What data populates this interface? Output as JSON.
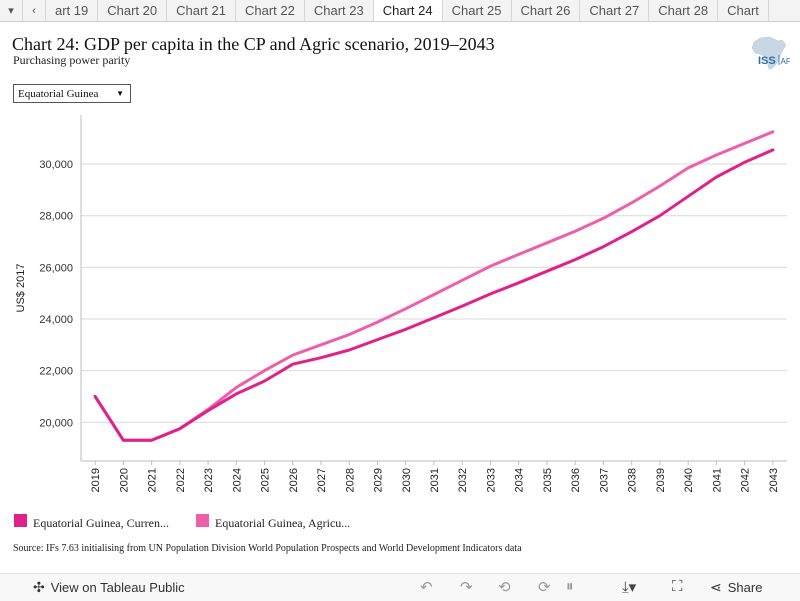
{
  "tabs": {
    "items": [
      "art 19",
      "Chart 20",
      "Chart 21",
      "Chart 22",
      "Chart 23",
      "Chart 24",
      "Chart 25",
      "Chart 26",
      "Chart 27",
      "Chart 28",
      "Chart"
    ],
    "active_index": 5,
    "menu_icon": "caret-down-icon",
    "prev_icon": "chevron-left-icon"
  },
  "header": {
    "title": "Chart 24: GDP per capita in the CP and Agric scenario, 2019–2043",
    "subtitle": "Purchasing power parity",
    "logo_text": "ISS",
    "logo_text2": "AFI"
  },
  "filter": {
    "selected": "Equatorial Guinea"
  },
  "chart_data": {
    "type": "line",
    "title": "Chart 24: GDP per capita in the CP and Agric scenario, 2019–2043",
    "subtitle": "Purchasing power parity",
    "xlabel": "",
    "ylabel": "US$ 2017",
    "x": [
      2019,
      2020,
      2021,
      2022,
      2023,
      2024,
      2025,
      2026,
      2027,
      2028,
      2029,
      2030,
      2031,
      2032,
      2033,
      2034,
      2035,
      2036,
      2037,
      2038,
      2039,
      2040,
      2041,
      2042,
      2043
    ],
    "ylim": [
      18500,
      31900
    ],
    "yticks": [
      20000,
      22000,
      24000,
      26000,
      28000,
      30000
    ],
    "ytick_labels": [
      "20,000",
      "22,000",
      "24,000",
      "26,000",
      "28,000",
      "30,000"
    ],
    "grid": true,
    "legend_position": "bottom-left",
    "series": [
      {
        "name": "Equatorial Guinea, Curren...",
        "color": "#e0218a",
        "values": [
          21000,
          19300,
          19300,
          19750,
          20450,
          21100,
          21600,
          22250,
          22500,
          22800,
          23200,
          23600,
          24050,
          24500,
          24970,
          25400,
          25850,
          26300,
          26800,
          27380,
          28000,
          28750,
          29500,
          30070,
          30550
        ]
      },
      {
        "name": "Equatorial Guinea, Agricu...",
        "color": "#ee5fa9",
        "values": [
          21000,
          19300,
          19300,
          19750,
          20500,
          21350,
          22000,
          22600,
          23000,
          23400,
          23880,
          24400,
          24950,
          25500,
          26050,
          26500,
          26950,
          27400,
          27900,
          28500,
          29150,
          29850,
          30350,
          30800,
          31250
        ]
      }
    ]
  },
  "source": "Source: IFs 7.63 initialising from UN Population Division World Population Prospects and World Development Indicators data",
  "footer": {
    "view_label": "View on Tableau Public",
    "view_icon": "tableau-icon",
    "share_label": "Share",
    "share_icon": "share-icon"
  }
}
